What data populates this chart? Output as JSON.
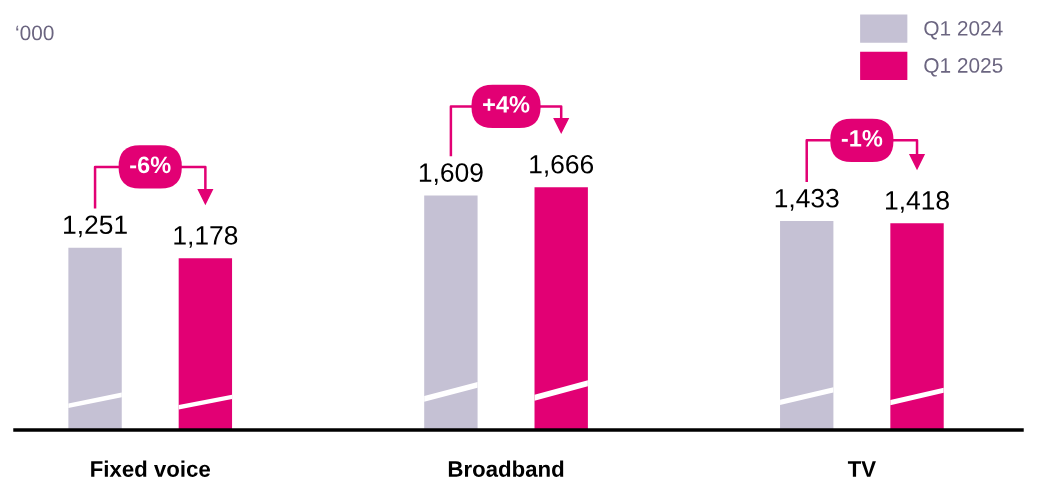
{
  "chart_data": {
    "type": "bar",
    "categories": [
      "Fixed voice",
      "Broadband",
      "TV"
    ],
    "tick_labels": "x",
    "legend": "top right",
    "annotations": [
      "‘000",
      "-6%",
      "+4%",
      "-1%"
    ],
    "series": [
      {
        "name": "Q1 2024",
        "color": "#c5c1d4",
        "values": [
          1251,
          1609,
          1433
        ],
        "value_labels": [
          "1,251",
          "1,609",
          "1,433"
        ]
      },
      {
        "name": "Q1 2025",
        "color": "#e20074",
        "values": [
          1178,
          1666,
          1418
        ],
        "value_labels": [
          "1,178",
          "1,666",
          "1,418"
        ]
      }
    ]
  }
}
